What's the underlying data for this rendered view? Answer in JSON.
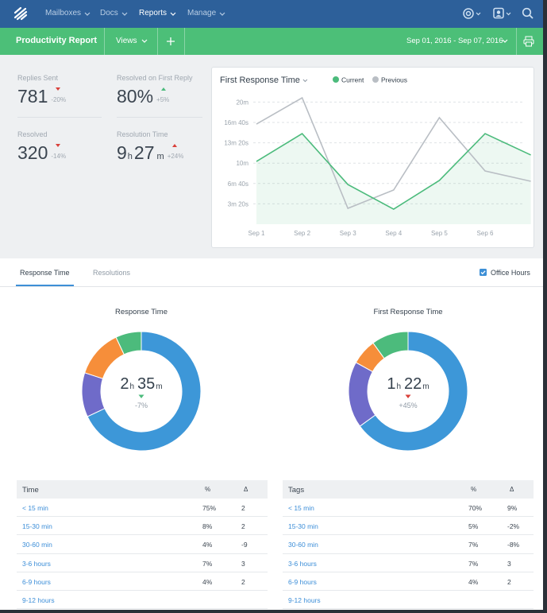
{
  "nav": {
    "items": [
      "Mailboxes",
      "Docs",
      "Reports",
      "Manage"
    ],
    "active": 2
  },
  "header": {
    "title": "Productivity Report",
    "views": "Views",
    "date_range": "Sep 01, 2016 - Sep 07, 2016"
  },
  "stats": [
    {
      "label": "Replies Sent",
      "value": "781",
      "change": "-20%",
      "arrow": "down",
      "tone": "bad"
    },
    {
      "label": "Resolved on First Reply",
      "value": "80%",
      "change": "+5%",
      "arrow": "up",
      "tone": "good"
    },
    {
      "label": "Resolved",
      "value": "320",
      "change": "-14%",
      "arrow": "down",
      "tone": "bad"
    },
    {
      "label": "Resolution Time",
      "value": "9",
      "unit": "h",
      "value2": "27",
      "unit2": "m",
      "change": "+24%",
      "arrow": "up",
      "tone": "bad"
    }
  ],
  "line_chart": {
    "type": "line",
    "title": "First Response Time",
    "categories": [
      "Sep 1",
      "Sep 2",
      "Sep 3",
      "Sep 4",
      "Sep 5",
      "Sep 6",
      null
    ],
    "series": [
      {
        "name": "Current",
        "color": "#4cbb7c",
        "values": [
          617,
          890,
          390,
          148,
          430,
          890,
          680
        ]
      },
      {
        "name": "Previous",
        "color": "#b9bec4",
        "values": [
          984,
          1242,
          156,
          336,
          1047,
          523,
          422
        ]
      }
    ],
    "ylim": [
      0,
      1300
    ],
    "yticks": [
      {
        "value": 200,
        "label": "3m 20s"
      },
      {
        "value": 400,
        "label": "6m 40s"
      },
      {
        "value": 600,
        "label": "10m"
      },
      {
        "value": 800,
        "label": "13m 20s"
      },
      {
        "value": 1000,
        "label": "16m 40s"
      },
      {
        "value": 1200,
        "label": "20m"
      }
    ],
    "grid": true
  },
  "tabs": {
    "items": [
      "Response Time",
      "Resolutions"
    ],
    "active": 0,
    "checkbox": "Office Hours"
  },
  "donuts": [
    {
      "type": "donut",
      "title": "Response Time",
      "values": [
        68,
        12,
        13,
        7
      ],
      "colors": [
        "#3d97d8",
        "#6f6bc9",
        "#f68e3a",
        "#4cbb7c"
      ],
      "center": {
        "value": "2",
        "unit": "h",
        "value2": "35",
        "unit2": "m"
      },
      "change": "-7%",
      "arrow": "down",
      "tone": "good"
    },
    {
      "type": "donut",
      "title": "First Response Time",
      "values": [
        65,
        18,
        7,
        10
      ],
      "colors": [
        "#3d97d8",
        "#6f6bc9",
        "#f68e3a",
        "#4cbb7c"
      ],
      "center": {
        "value": "1",
        "unit": "h",
        "value2": "22",
        "unit2": "m"
      },
      "change": "+45%",
      "arrow": "down",
      "tone": "bad"
    }
  ],
  "tables": [
    {
      "header": [
        "Time",
        "%",
        "Δ"
      ],
      "rows": [
        [
          "< 15 min",
          "75%",
          "2"
        ],
        [
          "15-30 min",
          "8%",
          "2"
        ],
        [
          "30-60 min",
          "4%",
          "-9"
        ],
        [
          "3-6 hours",
          "7%",
          "3"
        ],
        [
          "6-9 hours",
          "4%",
          "2"
        ],
        [
          "9-12 hours"
        ]
      ]
    },
    {
      "header": [
        "Tags",
        "%",
        "Δ"
      ],
      "rows": [
        [
          "< 15 min",
          "70%",
          "9%"
        ],
        [
          "15-30 min",
          "5%",
          "-2%"
        ],
        [
          "30-60 min",
          "7%",
          "-8%"
        ],
        [
          "3-6 hours",
          "7%",
          "3"
        ],
        [
          "6-9 hours",
          "4%",
          "2"
        ],
        [
          "9-12 hours"
        ]
      ]
    }
  ]
}
